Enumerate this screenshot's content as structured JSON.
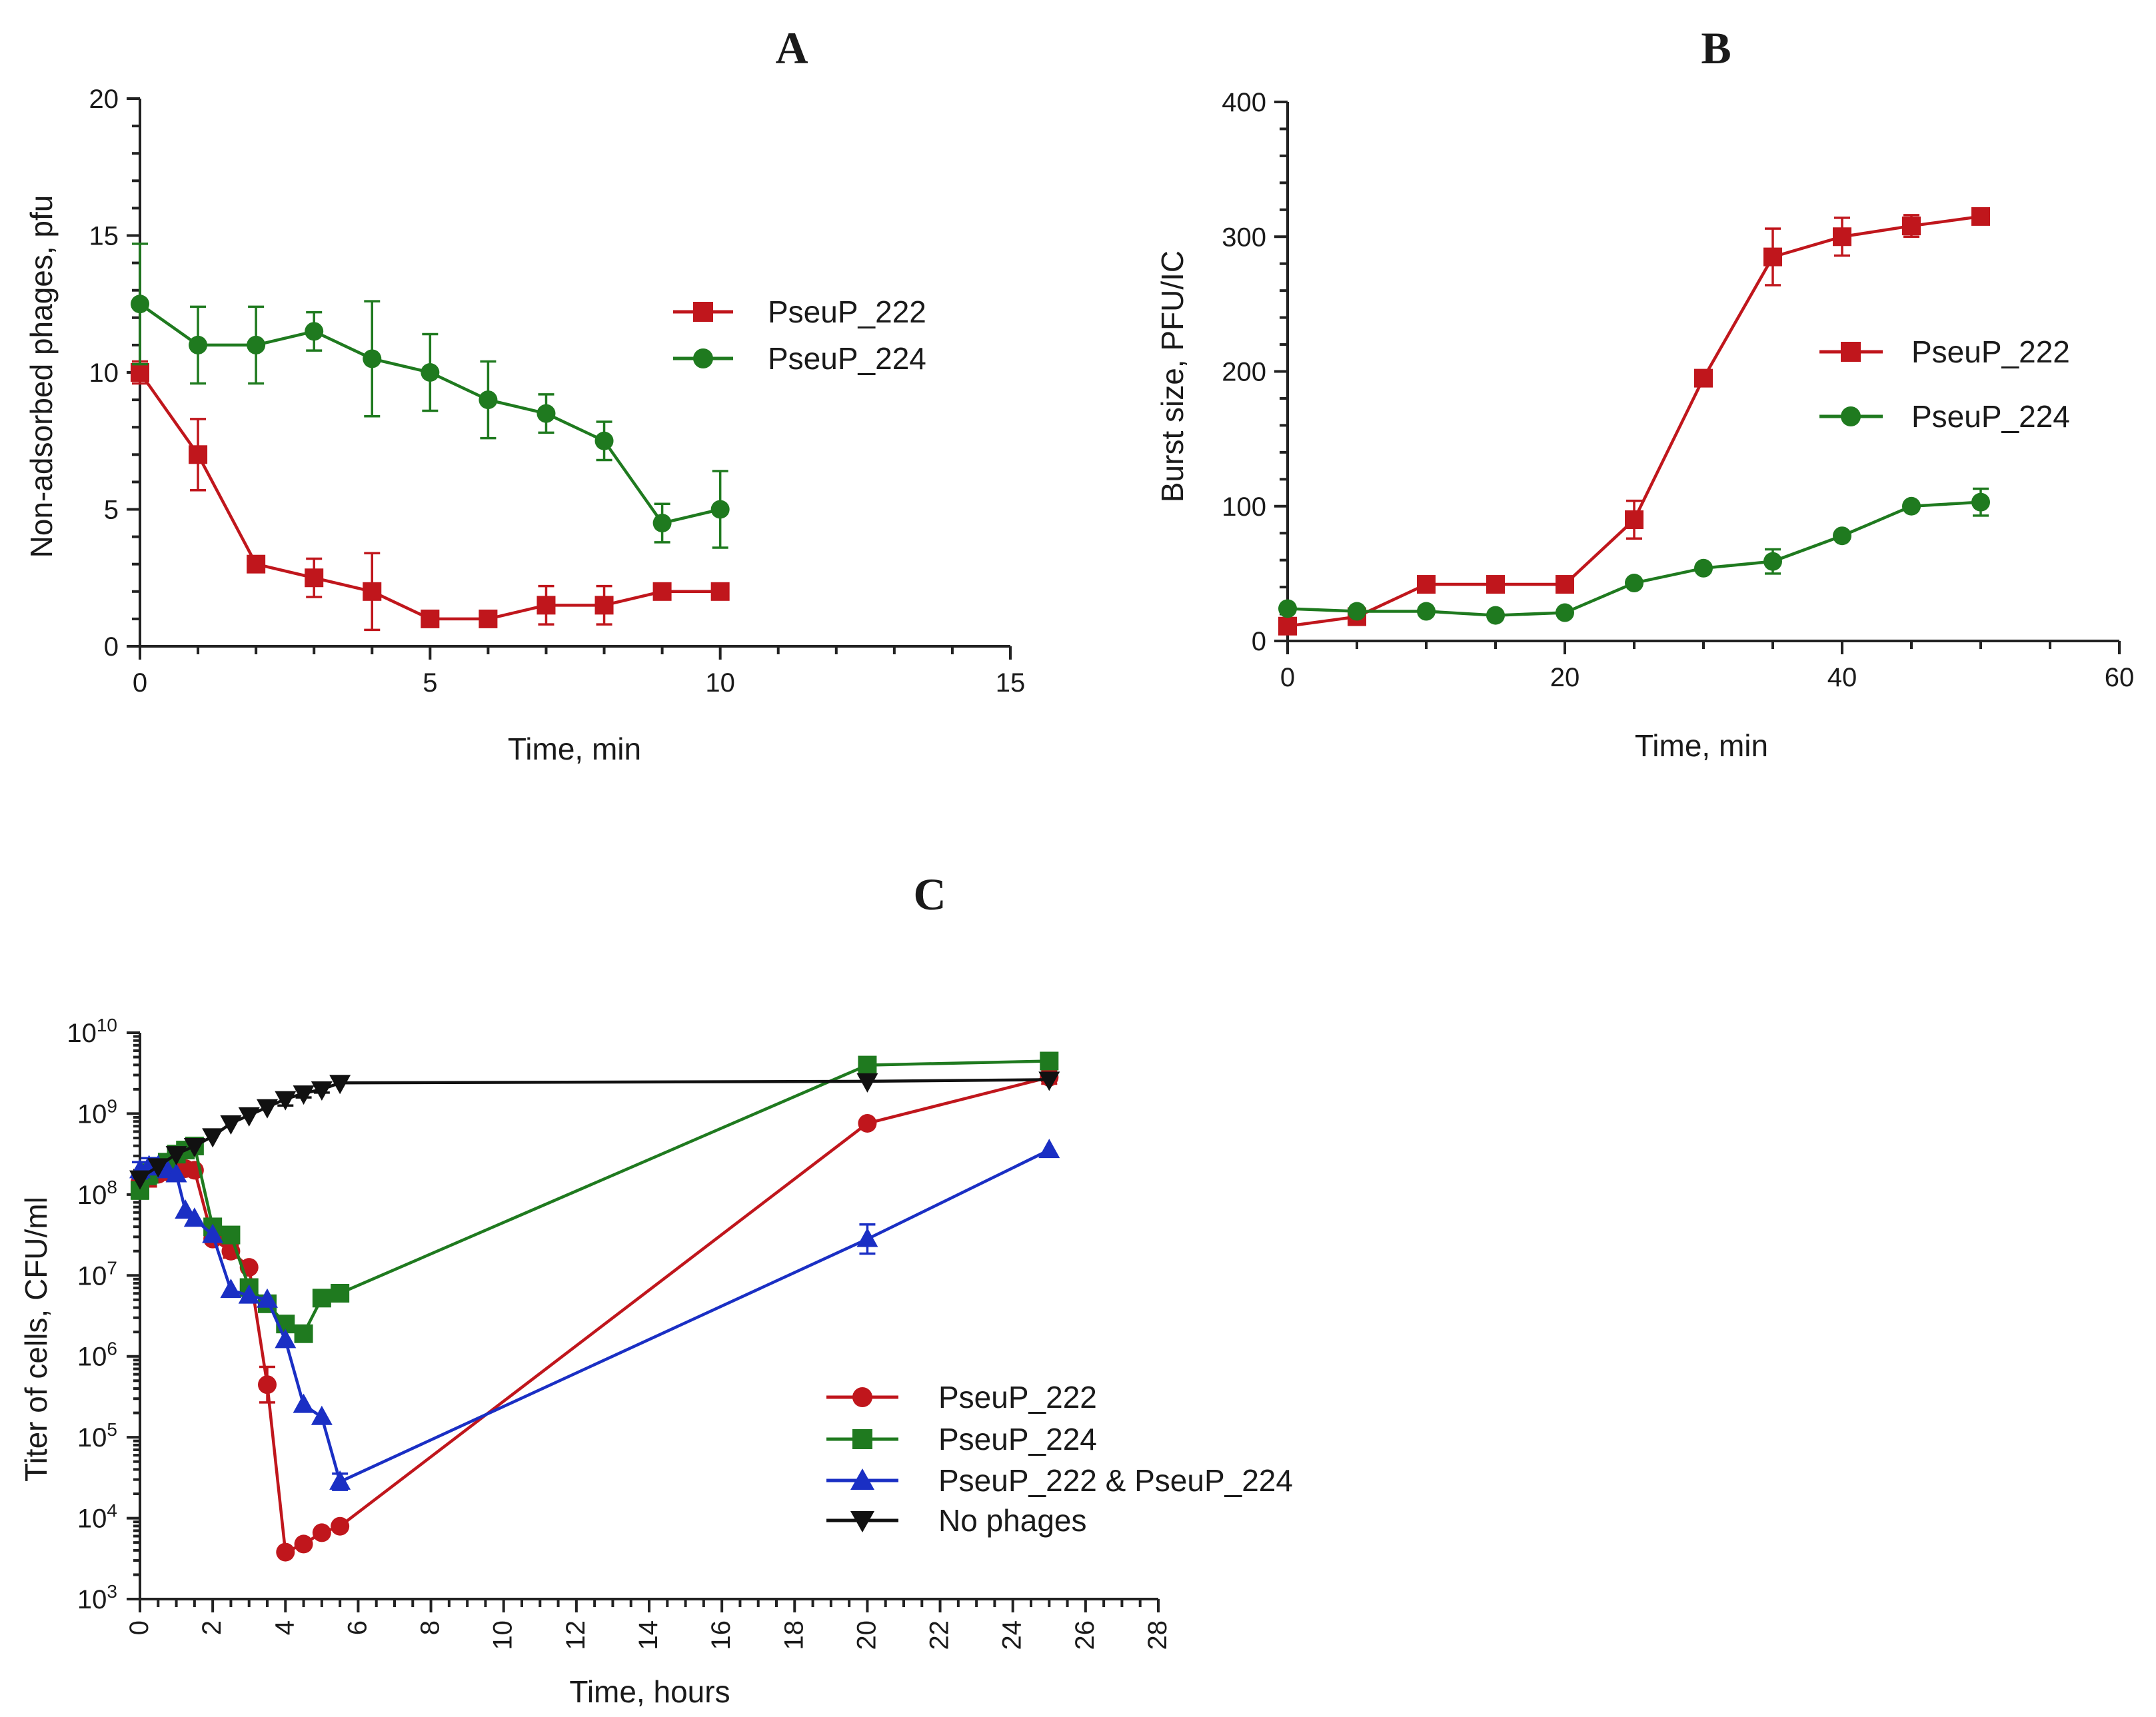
{
  "chart_data": [
    {
      "id": "A",
      "type": "line",
      "panel_label": "A",
      "title": "",
      "xlabel": "Time, min",
      "ylabel": "Non-adsorbed phages, pfu",
      "xlim": [
        0,
        15
      ],
      "ylim": [
        0,
        20
      ],
      "xticks": [
        0,
        5,
        10,
        15
      ],
      "yticks": [
        0,
        5,
        10,
        15,
        20
      ],
      "xminor": 1,
      "yminor": 1,
      "grid": false,
      "legend_position": "right-middle",
      "series": [
        {
          "name": "PseuP_222",
          "color": "#c0161c",
          "marker": "square",
          "x": [
            0,
            1,
            2,
            3,
            4,
            5,
            6,
            7,
            8,
            9,
            10
          ],
          "y": [
            10,
            7,
            3,
            2.5,
            2,
            1,
            1,
            1.5,
            1.5,
            2,
            2
          ],
          "err": [
            0.4,
            1.3,
            0,
            0.7,
            1.4,
            0,
            0,
            0.7,
            0.7,
            0,
            0
          ]
        },
        {
          "name": "PseuP_224",
          "color": "#1f7a1f",
          "marker": "circle",
          "x": [
            0,
            1,
            2,
            3,
            4,
            5,
            6,
            7,
            8,
            9,
            10
          ],
          "y": [
            12.5,
            11,
            11,
            11.5,
            10.5,
            10,
            9,
            8.5,
            7.5,
            4.5,
            5
          ],
          "err": [
            2.2,
            1.4,
            1.4,
            0.7,
            2.1,
            1.4,
            1.4,
            0.7,
            0.7,
            0.7,
            1.4
          ]
        }
      ]
    },
    {
      "id": "B",
      "type": "line",
      "panel_label": "B",
      "title": "",
      "xlabel": "Time, min",
      "ylabel": "Burst size, PFU/IC",
      "xlim": [
        0,
        60
      ],
      "ylim": [
        0,
        400
      ],
      "xticks": [
        0,
        20,
        40,
        60
      ],
      "yticks": [
        0,
        100,
        200,
        300,
        400
      ],
      "xminor": 5,
      "yminor": 20,
      "grid": false,
      "legend_position": "right-middle",
      "series": [
        {
          "name": "PseuP_222",
          "color": "#c0161c",
          "marker": "square",
          "x": [
            0,
            5,
            10,
            15,
            20,
            25,
            30,
            35,
            40,
            45,
            50
          ],
          "y": [
            11,
            18,
            42,
            42,
            42,
            90,
            195,
            285,
            300,
            308,
            315
          ],
          "err": [
            0,
            0,
            0,
            0,
            0,
            14,
            0,
            21,
            14,
            8,
            0
          ]
        },
        {
          "name": "PseuP_224",
          "color": "#1f7a1f",
          "marker": "circle",
          "x": [
            0,
            5,
            10,
            15,
            20,
            25,
            30,
            35,
            40,
            45,
            50
          ],
          "y": [
            24,
            22,
            22,
            19,
            21,
            43,
            54,
            59,
            78,
            100,
            103
          ],
          "err": [
            0,
            0,
            0,
            0,
            0,
            0,
            0,
            9,
            0,
            0,
            10
          ]
        }
      ]
    },
    {
      "id": "C",
      "type": "line",
      "panel_label": "C",
      "title": "",
      "xlabel": "Time, hours",
      "ylabel": "Titer of cells, CFU/ml",
      "xlim": [
        0,
        28
      ],
      "ylim_log10": [
        3,
        10
      ],
      "xticks": [
        0,
        2,
        4,
        6,
        8,
        10,
        12,
        14,
        16,
        18,
        20,
        22,
        24,
        26,
        28
      ],
      "ytick_base": "10",
      "ytick_exponents": [
        "3",
        "4",
        "5",
        "6",
        "7",
        "8",
        "9",
        "10"
      ],
      "xminor": 0.5,
      "grid": false,
      "legend_position": "bottom-center",
      "series": [
        {
          "name": "PseuP_222",
          "color": "#c0161c",
          "marker": "circle",
          "x": [
            0,
            0.25,
            0.5,
            0.75,
            1,
            1.25,
            1.5,
            2,
            2.5,
            3,
            3.5,
            4,
            4.5,
            5,
            5.5,
            20,
            25
          ],
          "log10y": [
            8.15,
            8.2,
            8.25,
            8.28,
            8.3,
            8.32,
            8.3,
            7.45,
            7.3,
            7.1,
            5.65,
            3.58,
            3.68,
            3.82,
            3.9,
            8.88,
            9.45
          ],
          "err_log": [
            0.12,
            0.1,
            0,
            0,
            0,
            0,
            0.05,
            0,
            0.08,
            0,
            0.22,
            0,
            0,
            0,
            0,
            0,
            0.08
          ]
        },
        {
          "name": "PseuP_224",
          "color": "#1f7a1f",
          "marker": "square",
          "x": [
            0,
            0.25,
            0.5,
            0.75,
            1,
            1.25,
            1.5,
            2,
            2.5,
            3,
            3.5,
            4,
            4.5,
            5,
            5.5,
            20,
            25
          ],
          "log10y": [
            8.05,
            8.25,
            8.35,
            8.4,
            8.5,
            8.55,
            8.6,
            7.6,
            7.5,
            6.85,
            6.65,
            6.4,
            6.28,
            6.72,
            6.78,
            9.6,
            9.65
          ],
          "err_log": [
            0.1,
            0.12,
            0,
            0,
            0,
            0,
            0,
            0,
            0.05,
            0,
            0,
            0,
            0,
            0,
            0,
            0,
            0
          ]
        },
        {
          "name": "PseuP_222 & PseuP_224",
          "color": "#1a2fc4",
          "marker": "triangle-up",
          "x": [
            0,
            0.25,
            0.5,
            0.75,
            1,
            1.25,
            1.5,
            2,
            2.5,
            3,
            3.5,
            4,
            4.5,
            5,
            5.5,
            20,
            25
          ],
          "log10y": [
            8.3,
            8.35,
            8.35,
            8.3,
            8.25,
            7.8,
            7.7,
            7.5,
            6.82,
            6.75,
            6.7,
            6.2,
            5.4,
            5.25,
            4.45,
            7.45,
            8.55
          ],
          "err_log": [
            0.1,
            0.1,
            0,
            0,
            0,
            0,
            0,
            0,
            0,
            0,
            0,
            0,
            0,
            0,
            0.1,
            0.18,
            0
          ]
        },
        {
          "name": "No phages",
          "color": "#111111",
          "marker": "triangle-down",
          "x": [
            0,
            0.5,
            1,
            1.5,
            2,
            2.5,
            3,
            3.5,
            4,
            4.5,
            5,
            5.5,
            20,
            25
          ],
          "log10y": [
            8.2,
            8.35,
            8.5,
            8.6,
            8.72,
            8.88,
            8.98,
            9.08,
            9.18,
            9.25,
            9.3,
            9.38,
            9.4,
            9.42
          ],
          "err_log": [
            0,
            0,
            0,
            0,
            0,
            0,
            0,
            0,
            0.08,
            0.05,
            0.04,
            0,
            0,
            0
          ]
        }
      ]
    }
  ]
}
